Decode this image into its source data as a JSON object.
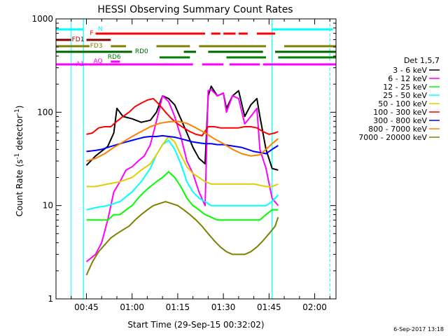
{
  "chart_data": {
    "type": "line",
    "title": "HESSI Observing Summary Count Rates",
    "xlabel": "Start Time (29-Sep-15 00:32:02)",
    "ylabel": "Count Rate (s",
    "ylabel_sup": "-1",
    "ylabel_rest": " detector",
    "ylabel_end": ")",
    "yscale": "log",
    "ylim": [
      1,
      1000
    ],
    "xlim_minutes": [
      35,
      127
    ],
    "x_ticks": [
      {
        "label": "00:45",
        "t": 45
      },
      {
        "label": "01:00",
        "t": 60
      },
      {
        "label": "01:15",
        "t": 75
      },
      {
        "label": "01:30",
        "t": 90
      },
      {
        "label": "01:45",
        "t": 105
      },
      {
        "label": "02:00",
        "t": 120
      }
    ],
    "y_ticks": [
      {
        "label": "1",
        "v": 1
      },
      {
        "label": "10",
        "v": 10
      },
      {
        "label": "100",
        "v": 100
      },
      {
        "label": "1000",
        "v": 1000
      }
    ],
    "legend_title": "Det 1,5,7",
    "legend_position": "right",
    "series": [
      {
        "name": "3 - 6 keV",
        "color": "#000000",
        "points": [
          [
            45,
            27
          ],
          [
            48,
            34
          ],
          [
            52,
            43
          ],
          [
            54,
            60
          ],
          [
            55,
            110
          ],
          [
            57,
            90
          ],
          [
            60,
            85
          ],
          [
            63,
            78
          ],
          [
            66,
            82
          ],
          [
            68,
            100
          ],
          [
            70,
            150
          ],
          [
            72,
            140
          ],
          [
            74,
            120
          ],
          [
            76,
            85
          ],
          [
            78,
            60
          ],
          [
            80,
            42
          ],
          [
            82,
            32
          ],
          [
            84,
            28
          ],
          [
            85,
            150
          ],
          [
            86,
            190
          ],
          [
            88,
            150
          ],
          [
            90,
            160
          ],
          [
            91,
            110
          ],
          [
            93,
            150
          ],
          [
            95,
            170
          ],
          [
            97,
            90
          ],
          [
            99,
            120
          ],
          [
            101,
            140
          ],
          [
            102,
            90
          ],
          [
            104,
            40
          ],
          [
            106,
            25
          ],
          [
            108,
            24
          ]
        ]
      },
      {
        "name": "6 - 12 keV",
        "color": "#ff00ff",
        "points": [
          [
            45,
            2.5
          ],
          [
            48,
            3
          ],
          [
            50,
            4
          ],
          [
            52,
            7
          ],
          [
            54,
            14
          ],
          [
            56,
            18
          ],
          [
            58,
            24
          ],
          [
            60,
            26
          ],
          [
            62,
            30
          ],
          [
            64,
            34
          ],
          [
            66,
            45
          ],
          [
            68,
            80
          ],
          [
            70,
            150
          ],
          [
            72,
            130
          ],
          [
            74,
            90
          ],
          [
            76,
            55
          ],
          [
            78,
            30
          ],
          [
            80,
            22
          ],
          [
            82,
            14
          ],
          [
            84,
            10
          ],
          [
            85,
            170
          ],
          [
            86,
            175
          ],
          [
            88,
            150
          ],
          [
            90,
            160
          ],
          [
            91,
            100
          ],
          [
            93,
            150
          ],
          [
            95,
            140
          ],
          [
            97,
            75
          ],
          [
            99,
            90
          ],
          [
            101,
            110
          ],
          [
            102,
            40
          ],
          [
            104,
            25
          ],
          [
            106,
            12
          ],
          [
            108,
            10
          ]
        ]
      },
      {
        "name": "12 - 25 keV",
        "color": "#00ff00",
        "points": [
          [
            45,
            7
          ],
          [
            48,
            7
          ],
          [
            50,
            7
          ],
          [
            52,
            7
          ],
          [
            54,
            8
          ],
          [
            56,
            8
          ],
          [
            58,
            9
          ],
          [
            60,
            10
          ],
          [
            62,
            12
          ],
          [
            64,
            14
          ],
          [
            66,
            16
          ],
          [
            68,
            18
          ],
          [
            70,
            20
          ],
          [
            72,
            23
          ],
          [
            74,
            20
          ],
          [
            76,
            16
          ],
          [
            78,
            12
          ],
          [
            80,
            10
          ],
          [
            82,
            9
          ],
          [
            84,
            8
          ],
          [
            86,
            7.5
          ],
          [
            88,
            7
          ],
          [
            90,
            7
          ],
          [
            92,
            7
          ],
          [
            94,
            7
          ],
          [
            96,
            7
          ],
          [
            98,
            7
          ],
          [
            100,
            7
          ],
          [
            102,
            7
          ],
          [
            104,
            8
          ],
          [
            106,
            9
          ],
          [
            108,
            9
          ]
        ]
      },
      {
        "name": "25 - 50 keV",
        "color": "#00ffff",
        "points": [
          [
            45,
            9
          ],
          [
            48,
            9.5
          ],
          [
            52,
            10
          ],
          [
            56,
            11
          ],
          [
            60,
            14
          ],
          [
            63,
            18
          ],
          [
            66,
            25
          ],
          [
            68,
            35
          ],
          [
            70,
            45
          ],
          [
            72,
            50
          ],
          [
            74,
            40
          ],
          [
            76,
            28
          ],
          [
            78,
            18
          ],
          [
            80,
            14
          ],
          [
            82,
            12
          ],
          [
            84,
            11
          ],
          [
            86,
            10
          ],
          [
            88,
            10
          ],
          [
            92,
            10
          ],
          [
            96,
            10
          ],
          [
            100,
            10
          ],
          [
            104,
            10
          ],
          [
            106,
            11
          ],
          [
            108,
            13
          ]
        ]
      },
      {
        "name": "50 - 100 keV",
        "color": "#e0d000",
        "points": [
          [
            45,
            16
          ],
          [
            48,
            16
          ],
          [
            52,
            17
          ],
          [
            56,
            18
          ],
          [
            60,
            20
          ],
          [
            63,
            24
          ],
          [
            66,
            28
          ],
          [
            68,
            35
          ],
          [
            70,
            45
          ],
          [
            72,
            55
          ],
          [
            74,
            48
          ],
          [
            76,
            35
          ],
          [
            78,
            26
          ],
          [
            80,
            22
          ],
          [
            82,
            20
          ],
          [
            84,
            18
          ],
          [
            86,
            17
          ],
          [
            88,
            17
          ],
          [
            92,
            17
          ],
          [
            96,
            17
          ],
          [
            100,
            17
          ],
          [
            104,
            16
          ],
          [
            106,
            16
          ],
          [
            108,
            17
          ]
        ]
      },
      {
        "name": "100 - 300 keV",
        "color": "#ff0000",
        "points": [
          [
            45,
            58
          ],
          [
            47,
            60
          ],
          [
            49,
            68
          ],
          [
            51,
            70
          ],
          [
            53,
            70
          ],
          [
            55,
            80
          ],
          [
            57,
            90
          ],
          [
            59,
            100
          ],
          [
            61,
            115
          ],
          [
            63,
            125
          ],
          [
            65,
            135
          ],
          [
            67,
            140
          ],
          [
            69,
            120
          ],
          [
            71,
            100
          ],
          [
            73,
            85
          ],
          [
            75,
            75
          ],
          [
            77,
            68
          ],
          [
            79,
            62
          ],
          [
            81,
            58
          ],
          [
            83,
            56
          ],
          [
            85,
            70
          ],
          [
            87,
            70
          ],
          [
            89,
            68
          ],
          [
            91,
            68
          ],
          [
            93,
            68
          ],
          [
            95,
            68
          ],
          [
            97,
            70
          ],
          [
            99,
            70
          ],
          [
            101,
            68
          ],
          [
            103,
            62
          ],
          [
            105,
            58
          ],
          [
            107,
            60
          ],
          [
            108,
            62
          ]
        ]
      },
      {
        "name": "300 - 800 keV",
        "color": "#0000ff",
        "points": [
          [
            45,
            38
          ],
          [
            48,
            39
          ],
          [
            50,
            40
          ],
          [
            52,
            42
          ],
          [
            54,
            44
          ],
          [
            56,
            46
          ],
          [
            58,
            48
          ],
          [
            60,
            50
          ],
          [
            62,
            52
          ],
          [
            64,
            54
          ],
          [
            66,
            55
          ],
          [
            68,
            55
          ],
          [
            70,
            56
          ],
          [
            72,
            55
          ],
          [
            74,
            54
          ],
          [
            76,
            52
          ],
          [
            78,
            50
          ],
          [
            80,
            48
          ],
          [
            82,
            47
          ],
          [
            84,
            46
          ],
          [
            86,
            46
          ],
          [
            88,
            45
          ],
          [
            90,
            45
          ],
          [
            92,
            44
          ],
          [
            94,
            43
          ],
          [
            96,
            42
          ],
          [
            98,
            40
          ],
          [
            100,
            38
          ],
          [
            102,
            37
          ],
          [
            104,
            36
          ],
          [
            106,
            40
          ],
          [
            108,
            44
          ]
        ]
      },
      {
        "name": "800 - 7000 keV",
        "color": "#ff8000",
        "points": [
          [
            45,
            30
          ],
          [
            48,
            32
          ],
          [
            51,
            36
          ],
          [
            54,
            42
          ],
          [
            57,
            48
          ],
          [
            60,
            55
          ],
          [
            63,
            62
          ],
          [
            66,
            70
          ],
          [
            69,
            76
          ],
          [
            72,
            79
          ],
          [
            75,
            80
          ],
          [
            78,
            76
          ],
          [
            81,
            68
          ],
          [
            84,
            60
          ],
          [
            87,
            52
          ],
          [
            90,
            46
          ],
          [
            93,
            40
          ],
          [
            96,
            36
          ],
          [
            99,
            34
          ],
          [
            102,
            35
          ],
          [
            104,
            40
          ],
          [
            106,
            46
          ],
          [
            108,
            52
          ]
        ]
      },
      {
        "name": "7000 - 20000 keV",
        "color": "#808000",
        "points": [
          [
            45,
            1.8
          ],
          [
            47,
            2.5
          ],
          [
            49,
            3.2
          ],
          [
            51,
            3.8
          ],
          [
            53,
            4.5
          ],
          [
            55,
            5
          ],
          [
            57,
            5.5
          ],
          [
            59,
            6
          ],
          [
            61,
            7
          ],
          [
            63,
            8
          ],
          [
            65,
            9
          ],
          [
            67,
            10
          ],
          [
            69,
            10.5
          ],
          [
            71,
            11
          ],
          [
            73,
            10.5
          ],
          [
            75,
            10
          ],
          [
            77,
            9
          ],
          [
            79,
            8
          ],
          [
            81,
            7
          ],
          [
            83,
            6
          ],
          [
            85,
            5
          ],
          [
            87,
            4.2
          ],
          [
            89,
            3.6
          ],
          [
            91,
            3.2
          ],
          [
            93,
            3.0
          ],
          [
            95,
            3.0
          ],
          [
            97,
            3.0
          ],
          [
            99,
            3.2
          ],
          [
            101,
            3.6
          ],
          [
            103,
            4.2
          ],
          [
            105,
            5
          ],
          [
            107,
            6
          ],
          [
            108,
            7.5
          ]
        ]
      }
    ],
    "flags": [
      {
        "name": "N",
        "color": "#00ffff",
        "label_t": 51,
        "segments": [
          [
            35,
            44
          ],
          [
            106,
            126
          ]
        ]
      },
      {
        "name": "F",
        "color": "#ff0000",
        "label_t": 48,
        "segments": [
          [
            48,
            84
          ],
          [
            86,
            89
          ],
          [
            90,
            94
          ],
          [
            95,
            98
          ],
          [
            101,
            107
          ]
        ]
      },
      {
        "name": "FD1",
        "color": "#8b0000",
        "label_t": 45,
        "segments": [
          [
            35,
            40
          ],
          [
            45,
            53
          ]
        ]
      },
      {
        "name": "FD3",
        "color": "#808000",
        "label_t": 51,
        "segments": [
          [
            35,
            46
          ],
          [
            53,
            58
          ],
          [
            68,
            79
          ],
          [
            82,
            104
          ],
          [
            110,
            127
          ]
        ]
      },
      {
        "name": "RD0",
        "color": "#006400",
        "label_t": 66,
        "segments": [
          [
            35,
            60
          ],
          [
            77,
            81
          ],
          [
            85,
            103
          ],
          [
            107,
            127
          ]
        ]
      },
      {
        "name": "RD6",
        "color": "#008000",
        "label_t": 57,
        "segments": [
          [
            69,
            79
          ],
          [
            91,
            104
          ],
          [
            108,
            127
          ]
        ]
      },
      {
        "name": "AQ",
        "color": "#ff00ff",
        "label_t": 51,
        "segments": [
          [
            53,
            56
          ]
        ]
      },
      {
        "name": "A1",
        "color": "#ff00ff",
        "label_t": 45,
        "segments": [
          [
            35,
            80
          ],
          [
            83,
            90
          ],
          [
            92,
            102
          ],
          [
            103,
            127
          ]
        ]
      }
    ],
    "footer": "6-Sep-2017 13:18"
  }
}
